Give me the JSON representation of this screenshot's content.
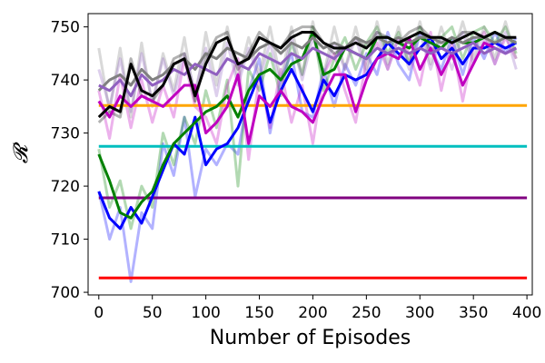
{
  "chart_data": {
    "type": "line",
    "xlabel": "Number of Episodes",
    "ylabel": "𝓡",
    "xlim": [
      -10,
      405
    ],
    "ylim": [
      699.5,
      752.5
    ],
    "x_ticks": [
      0,
      50,
      100,
      150,
      200,
      250,
      300,
      350,
      400
    ],
    "y_ticks": [
      700,
      710,
      720,
      730,
      740,
      750
    ],
    "grid": false,
    "baselines": [
      {
        "y": 735.2,
        "x": [
          0,
          400
        ],
        "color": "#ffa500"
      },
      {
        "y": 727.5,
        "x": [
          0,
          400
        ],
        "color": "#00bfbf"
      },
      {
        "y": 717.8,
        "x": [
          0,
          400
        ],
        "color": "#800080"
      },
      {
        "y": 702.7,
        "x": [
          0,
          400
        ],
        "color": "#ff0000"
      }
    ],
    "series": [
      {
        "color": "#0000ff",
        "x": [
          0,
          10,
          20,
          30,
          40,
          50,
          60,
          70,
          80,
          90,
          100,
          110,
          120,
          130,
          140,
          150,
          160,
          170,
          180,
          190,
          200,
          210,
          220,
          230,
          240,
          250,
          260,
          270,
          280,
          290,
          300,
          310,
          320,
          330,
          340,
          350,
          360,
          370,
          380,
          390
        ],
        "values": [
          719,
          714,
          712,
          716,
          713,
          718,
          723,
          728,
          726,
          733,
          724,
          727,
          728,
          731,
          736,
          741,
          732,
          738,
          742,
          738,
          734,
          740,
          737,
          741,
          740,
          741,
          744,
          747,
          745,
          743,
          746,
          748,
          744,
          746,
          743,
          746,
          746,
          747,
          746,
          747
        ],
        "raw": [
          719,
          710,
          716,
          702,
          715,
          712,
          728,
          722,
          733,
          718,
          727,
          724,
          728,
          726,
          738,
          744,
          730,
          740,
          745,
          734,
          733,
          742,
          735,
          743,
          739,
          745,
          741,
          749,
          743,
          740,
          749,
          746,
          742,
          748,
          741,
          748,
          744,
          749,
          745,
          748
        ]
      },
      {
        "color": "#008000",
        "x": [
          0,
          10,
          20,
          30,
          40,
          50,
          60,
          70,
          80,
          90,
          100,
          110,
          120,
          130,
          140,
          150,
          160,
          170,
          180,
          190,
          200,
          210,
          220,
          230,
          240,
          250,
          260,
          270,
          280,
          290,
          300,
          310,
          320,
          330,
          340,
          350,
          360,
          370,
          380,
          390
        ],
        "values": [
          726,
          721,
          715,
          714,
          717,
          719,
          724,
          728,
          730,
          732,
          734,
          735,
          737,
          733,
          738,
          741,
          742,
          740,
          743,
          744,
          749,
          741,
          742,
          746,
          745,
          744,
          748,
          748,
          747,
          746,
          748,
          747,
          746,
          748,
          747,
          747,
          748,
          749,
          748,
          747
        ],
        "raw": [
          727,
          716,
          721,
          712,
          720,
          716,
          730,
          724,
          733,
          728,
          738,
          731,
          740,
          720,
          742,
          738,
          745,
          737,
          747,
          741,
          750,
          738,
          744,
          748,
          742,
          747,
          750,
          745,
          749,
          743,
          750,
          745,
          748,
          750,
          744,
          749,
          750,
          747,
          750,
          745
        ]
      },
      {
        "color": "#c000c0",
        "x": [
          0,
          10,
          20,
          30,
          40,
          50,
          60,
          70,
          80,
          90,
          100,
          110,
          120,
          130,
          140,
          150,
          160,
          170,
          180,
          190,
          200,
          210,
          220,
          230,
          240,
          250,
          260,
          270,
          280,
          290,
          300,
          310,
          320,
          330,
          340,
          350,
          360,
          370,
          380,
          390
        ],
        "values": [
          736,
          733,
          737,
          735,
          737,
          736,
          735,
          737,
          739,
          739,
          730,
          732,
          735,
          741,
          728,
          737,
          735,
          738,
          735,
          734,
          732,
          737,
          741,
          741,
          734,
          740,
          744,
          745,
          744,
          748,
          742,
          746,
          741,
          745,
          739,
          743,
          747,
          746,
          745,
          746
        ],
        "raw": [
          738,
          729,
          741,
          731,
          740,
          732,
          739,
          733,
          744,
          735,
          733,
          728,
          739,
          744,
          725,
          741,
          731,
          742,
          732,
          739,
          728,
          741,
          745,
          738,
          732,
          744,
          747,
          742,
          748,
          745,
          739,
          749,
          738,
          747,
          736,
          746,
          749,
          743,
          748,
          744
        ]
      },
      {
        "color": "#808080",
        "x": [
          0,
          10,
          20,
          30,
          40,
          50,
          60,
          70,
          80,
          90,
          100,
          110,
          120,
          130,
          140,
          150,
          160,
          170,
          180,
          190,
          200,
          210,
          220,
          230,
          240,
          250,
          260,
          270,
          280,
          290,
          300,
          310,
          320,
          330,
          340,
          350,
          360,
          370,
          380,
          390
        ],
        "values": [
          738,
          740,
          741,
          739,
          742,
          740,
          741,
          743,
          744,
          742,
          745,
          744,
          746,
          745,
          744,
          746,
          747,
          745,
          747,
          746,
          748,
          746,
          747,
          746,
          748,
          747,
          748,
          747,
          748,
          747,
          748,
          748,
          747,
          748,
          747,
          748,
          748,
          747,
          748,
          747
        ],
        "raw": [
          746,
          734,
          746,
          733,
          747,
          735,
          745,
          738,
          748,
          736,
          749,
          739,
          750,
          740,
          748,
          741,
          750,
          740,
          750,
          741,
          751,
          741,
          750,
          742,
          750,
          742,
          751,
          743,
          750,
          743,
          751,
          743,
          750,
          744,
          751,
          744,
          750,
          744,
          751,
          744
        ]
      },
      {
        "color": "#9060c0",
        "x": [
          0,
          10,
          20,
          30,
          40,
          50,
          60,
          70,
          80,
          90,
          100,
          110,
          120,
          130,
          140,
          150,
          160,
          170,
          180,
          190,
          200,
          210,
          220,
          230,
          240,
          250,
          260,
          270,
          280,
          290,
          300,
          310,
          320,
          330,
          340,
          350,
          360,
          370,
          380,
          390
        ],
        "values": [
          739,
          738,
          740,
          737,
          741,
          739,
          740,
          742,
          741,
          743,
          742,
          741,
          744,
          743,
          742,
          745,
          744,
          743,
          745,
          744,
          746,
          745,
          744,
          746,
          745,
          744,
          746,
          745,
          746,
          745,
          746,
          745,
          746,
          745,
          746,
          747,
          745,
          746,
          745,
          746
        ],
        "raw": [
          742,
          735,
          744,
          734,
          745,
          736,
          744,
          737,
          745,
          738,
          746,
          737,
          747,
          739,
          746,
          740,
          747,
          739,
          748,
          740,
          748,
          741,
          747,
          742,
          748,
          741,
          749,
          742,
          748,
          742,
          749,
          742,
          748,
          742,
          749,
          743,
          748,
          743,
          749,
          742
        ]
      },
      {
        "color": "#000000",
        "x": [
          0,
          10,
          20,
          30,
          40,
          50,
          60,
          70,
          80,
          90,
          100,
          110,
          120,
          130,
          140,
          150,
          160,
          170,
          180,
          190,
          200,
          210,
          220,
          230,
          240,
          250,
          260,
          270,
          280,
          290,
          300,
          310,
          320,
          330,
          340,
          350,
          360,
          370,
          380,
          390
        ],
        "values": [
          733,
          735,
          734,
          743,
          738,
          737,
          739,
          743,
          744,
          737,
          743,
          747,
          748,
          743,
          744,
          748,
          747,
          746,
          748,
          749,
          749,
          747,
          746,
          746,
          747,
          746,
          748,
          748,
          747,
          748,
          749,
          748,
          748,
          747,
          748,
          749,
          748,
          749,
          748,
          748
        ],
        "raw": [
          732,
          734,
          733,
          744,
          737,
          736,
          739,
          744,
          745,
          736,
          744,
          748,
          749,
          742,
          745,
          749,
          747,
          746,
          749,
          750,
          750,
          747,
          745,
          746,
          748,
          746,
          749,
          748,
          747,
          749,
          750,
          748,
          748,
          747,
          749,
          749,
          748,
          749,
          748,
          748
        ]
      }
    ]
  }
}
